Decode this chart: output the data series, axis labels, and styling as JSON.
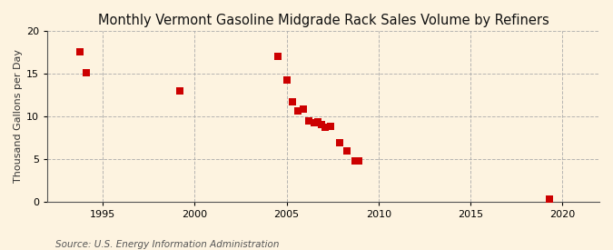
{
  "title": "Monthly Vermont Gasoline Midgrade Rack Sales Volume by Refiners",
  "ylabel": "Thousand Gallons per Day",
  "source": "Source: U.S. Energy Information Administration",
  "background_color": "#fdf3e0",
  "data_points": [
    [
      1993.75,
      17.5
    ],
    [
      1994.1,
      15.1
    ],
    [
      1999.2,
      13.0
    ],
    [
      2004.5,
      17.0
    ],
    [
      2005.0,
      14.2
    ],
    [
      2005.3,
      11.7
    ],
    [
      2005.6,
      10.6
    ],
    [
      2005.9,
      10.8
    ],
    [
      2006.2,
      9.5
    ],
    [
      2006.5,
      9.2
    ],
    [
      2006.7,
      9.3
    ],
    [
      2006.9,
      9.0
    ],
    [
      2007.1,
      8.7
    ],
    [
      2007.4,
      8.8
    ],
    [
      2007.9,
      6.9
    ],
    [
      2008.3,
      5.9
    ],
    [
      2008.7,
      4.8
    ],
    [
      2008.9,
      4.8
    ],
    [
      2019.3,
      0.3
    ]
  ],
  "xlim": [
    1992,
    2022
  ],
  "ylim": [
    0,
    20
  ],
  "xticks": [
    1995,
    2000,
    2005,
    2010,
    2015,
    2020
  ],
  "yticks": [
    0,
    5,
    10,
    15,
    20
  ],
  "marker_color": "#cc0000",
  "marker_size": 28,
  "grid_color": "#aaaaaa",
  "grid_style": "--",
  "title_fontsize": 10.5,
  "label_fontsize": 8,
  "tick_fontsize": 8,
  "source_fontsize": 7.5
}
